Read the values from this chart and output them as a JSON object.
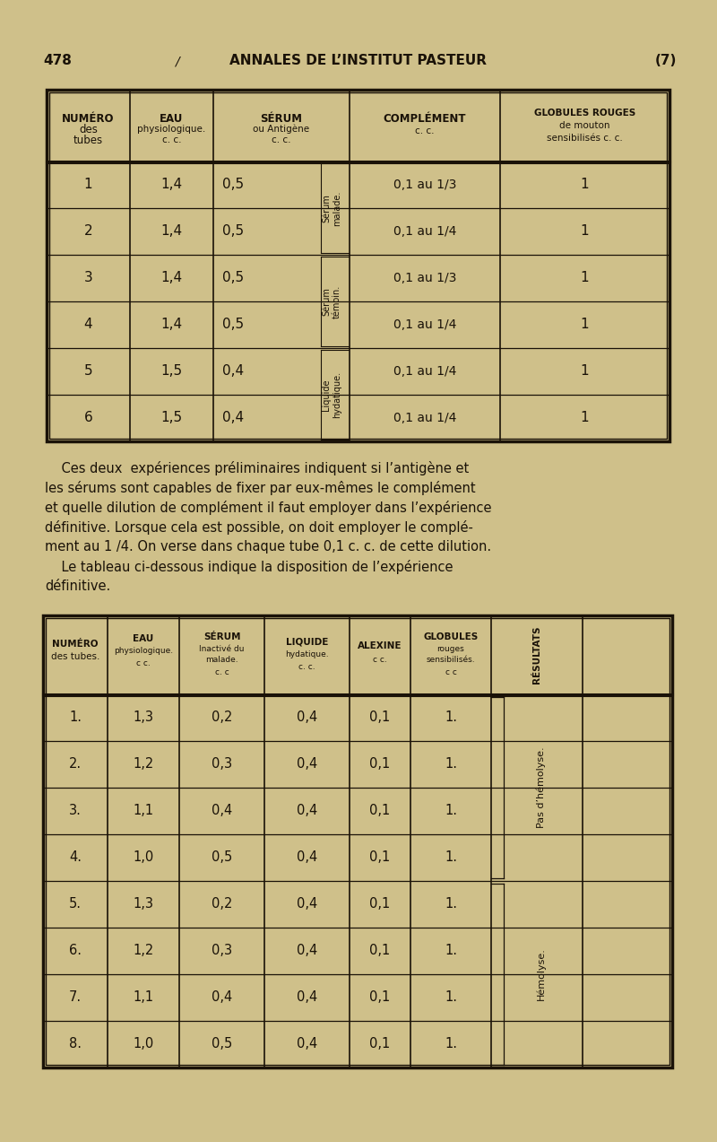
{
  "bg_color": "#cfc08a",
  "text_color": "#1a1208",
  "page_num_left": "478",
  "page_title": "ANNALES DE L’INSTITUT PASTEUR",
  "page_num_right": "(7)",
  "table1_rows": [
    [
      "1",
      "1,4",
      "0,5",
      "0,1 au 1/3",
      "1"
    ],
    [
      "2",
      "1,4",
      "0,5",
      "0,1 au 1/4",
      "1"
    ],
    [
      "3",
      "1,4",
      "0,5",
      "0,1 au 1/3",
      "1"
    ],
    [
      "4",
      "1,4",
      "0,5",
      "0,1 au 1/4",
      "1"
    ],
    [
      "5",
      "1,5",
      "0,4",
      "0,1 au 1/4",
      "1"
    ],
    [
      "6",
      "1,5",
      "0,4",
      "0,1 au 1/4",
      "1"
    ]
  ],
  "table1_brace": [
    {
      "rows": [
        0,
        1
      ],
      "label": "Sérum\nmalade."
    },
    {
      "rows": [
        2,
        3
      ],
      "label": "Sérum\ntémoin."
    },
    {
      "rows": [
        4,
        5
      ],
      "label": "Liquide\nhydatique."
    }
  ],
  "para_lines": [
    "    Ces deux  expériences préliminaires indiquent si l’antigène et",
    "les sérums sont capables de fixer par eux-mêmes le complément",
    "et quelle dilution de complément il faut employer dans l’expérience",
    "définitive. Lorsque cela est possible, on doit employer le complé-",
    "ment au 1 /4. On verse dans chaque tube 0,1 c. c. de cette dilution.",
    "    Le tableau ci-dessous indique la disposition de l’expérience",
    "définitive."
  ],
  "table2_rows": [
    [
      "1.",
      "1,3",
      "0,2",
      "0,4",
      "0,1",
      "1."
    ],
    [
      "2.",
      "1,2",
      "0,3",
      "0,4",
      "0,1",
      "1."
    ],
    [
      "3.",
      "1,1",
      "0,4",
      "0,4",
      "0,1",
      "1."
    ],
    [
      "4.",
      "1,0",
      "0,5",
      "0,4",
      "0,1",
      "1."
    ],
    [
      "5.",
      "1,3",
      "0,2",
      "0,4",
      "0,1",
      "1."
    ],
    [
      "6.",
      "1,2",
      "0,3",
      "0,4",
      "0,1",
      "1."
    ],
    [
      "7.",
      "1,1",
      "0,4",
      "0,4",
      "0,1",
      "1."
    ],
    [
      "8.",
      "1,0",
      "0,5",
      "0,4",
      "0,1",
      "1."
    ]
  ],
  "table2_brace": [
    {
      "rows": [
        0,
        1,
        2,
        3
      ],
      "label": "Pas d’hémolyse."
    },
    {
      "rows": [
        4,
        5,
        6,
        7
      ],
      "label": "Hémolyse."
    }
  ]
}
